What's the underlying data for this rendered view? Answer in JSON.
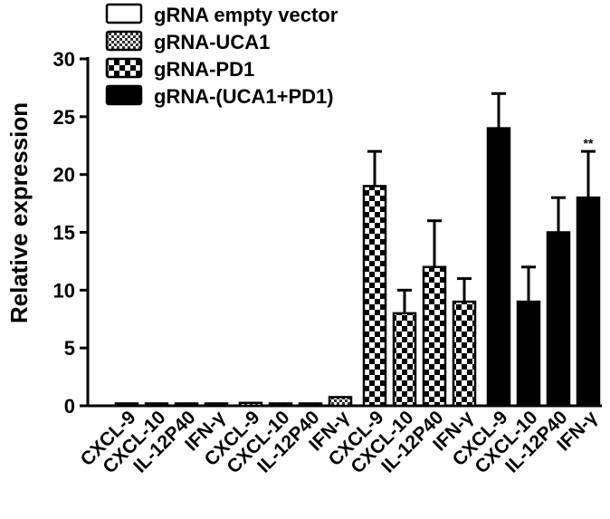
{
  "chart_data": {
    "type": "bar",
    "title": "",
    "xlabel": "",
    "ylabel": "Relative expression",
    "ylim": [
      0,
      30
    ],
    "yticks": [
      0,
      5,
      10,
      15,
      20,
      25,
      30
    ],
    "grid": false,
    "legend_position": "top-left",
    "categories": [
      "CXCL-9",
      "CXCL-10",
      "IL-12P40",
      "IFN-γ"
    ],
    "series": [
      {
        "name": "gRNA empty vector",
        "pattern": "empty",
        "values": [
          0.2,
          0.2,
          0.2,
          0.2
        ],
        "errors": [
          0.05,
          0.05,
          0.05,
          0.05
        ],
        "annotations": [
          "",
          "",
          "",
          ""
        ]
      },
      {
        "name": "gRNA-UCA1",
        "pattern": "fine-check",
        "values": [
          0.25,
          0.2,
          0.2,
          0.75
        ],
        "errors": [
          0.05,
          0.05,
          0.05,
          0.05
        ],
        "annotations": [
          "",
          "",
          "",
          ""
        ]
      },
      {
        "name": "gRNA-PD1",
        "pattern": "coarse-check",
        "values": [
          19,
          8,
          12,
          9
        ],
        "errors": [
          3,
          2,
          4,
          2
        ],
        "annotations": [
          "",
          "",
          "",
          ""
        ]
      },
      {
        "name": "gRNA-(UCA1+PD1)",
        "pattern": "solid",
        "values": [
          24,
          9,
          15,
          18
        ],
        "errors": [
          3,
          3,
          3,
          4
        ],
        "annotations": [
          "",
          "",
          "",
          "**"
        ]
      }
    ]
  }
}
